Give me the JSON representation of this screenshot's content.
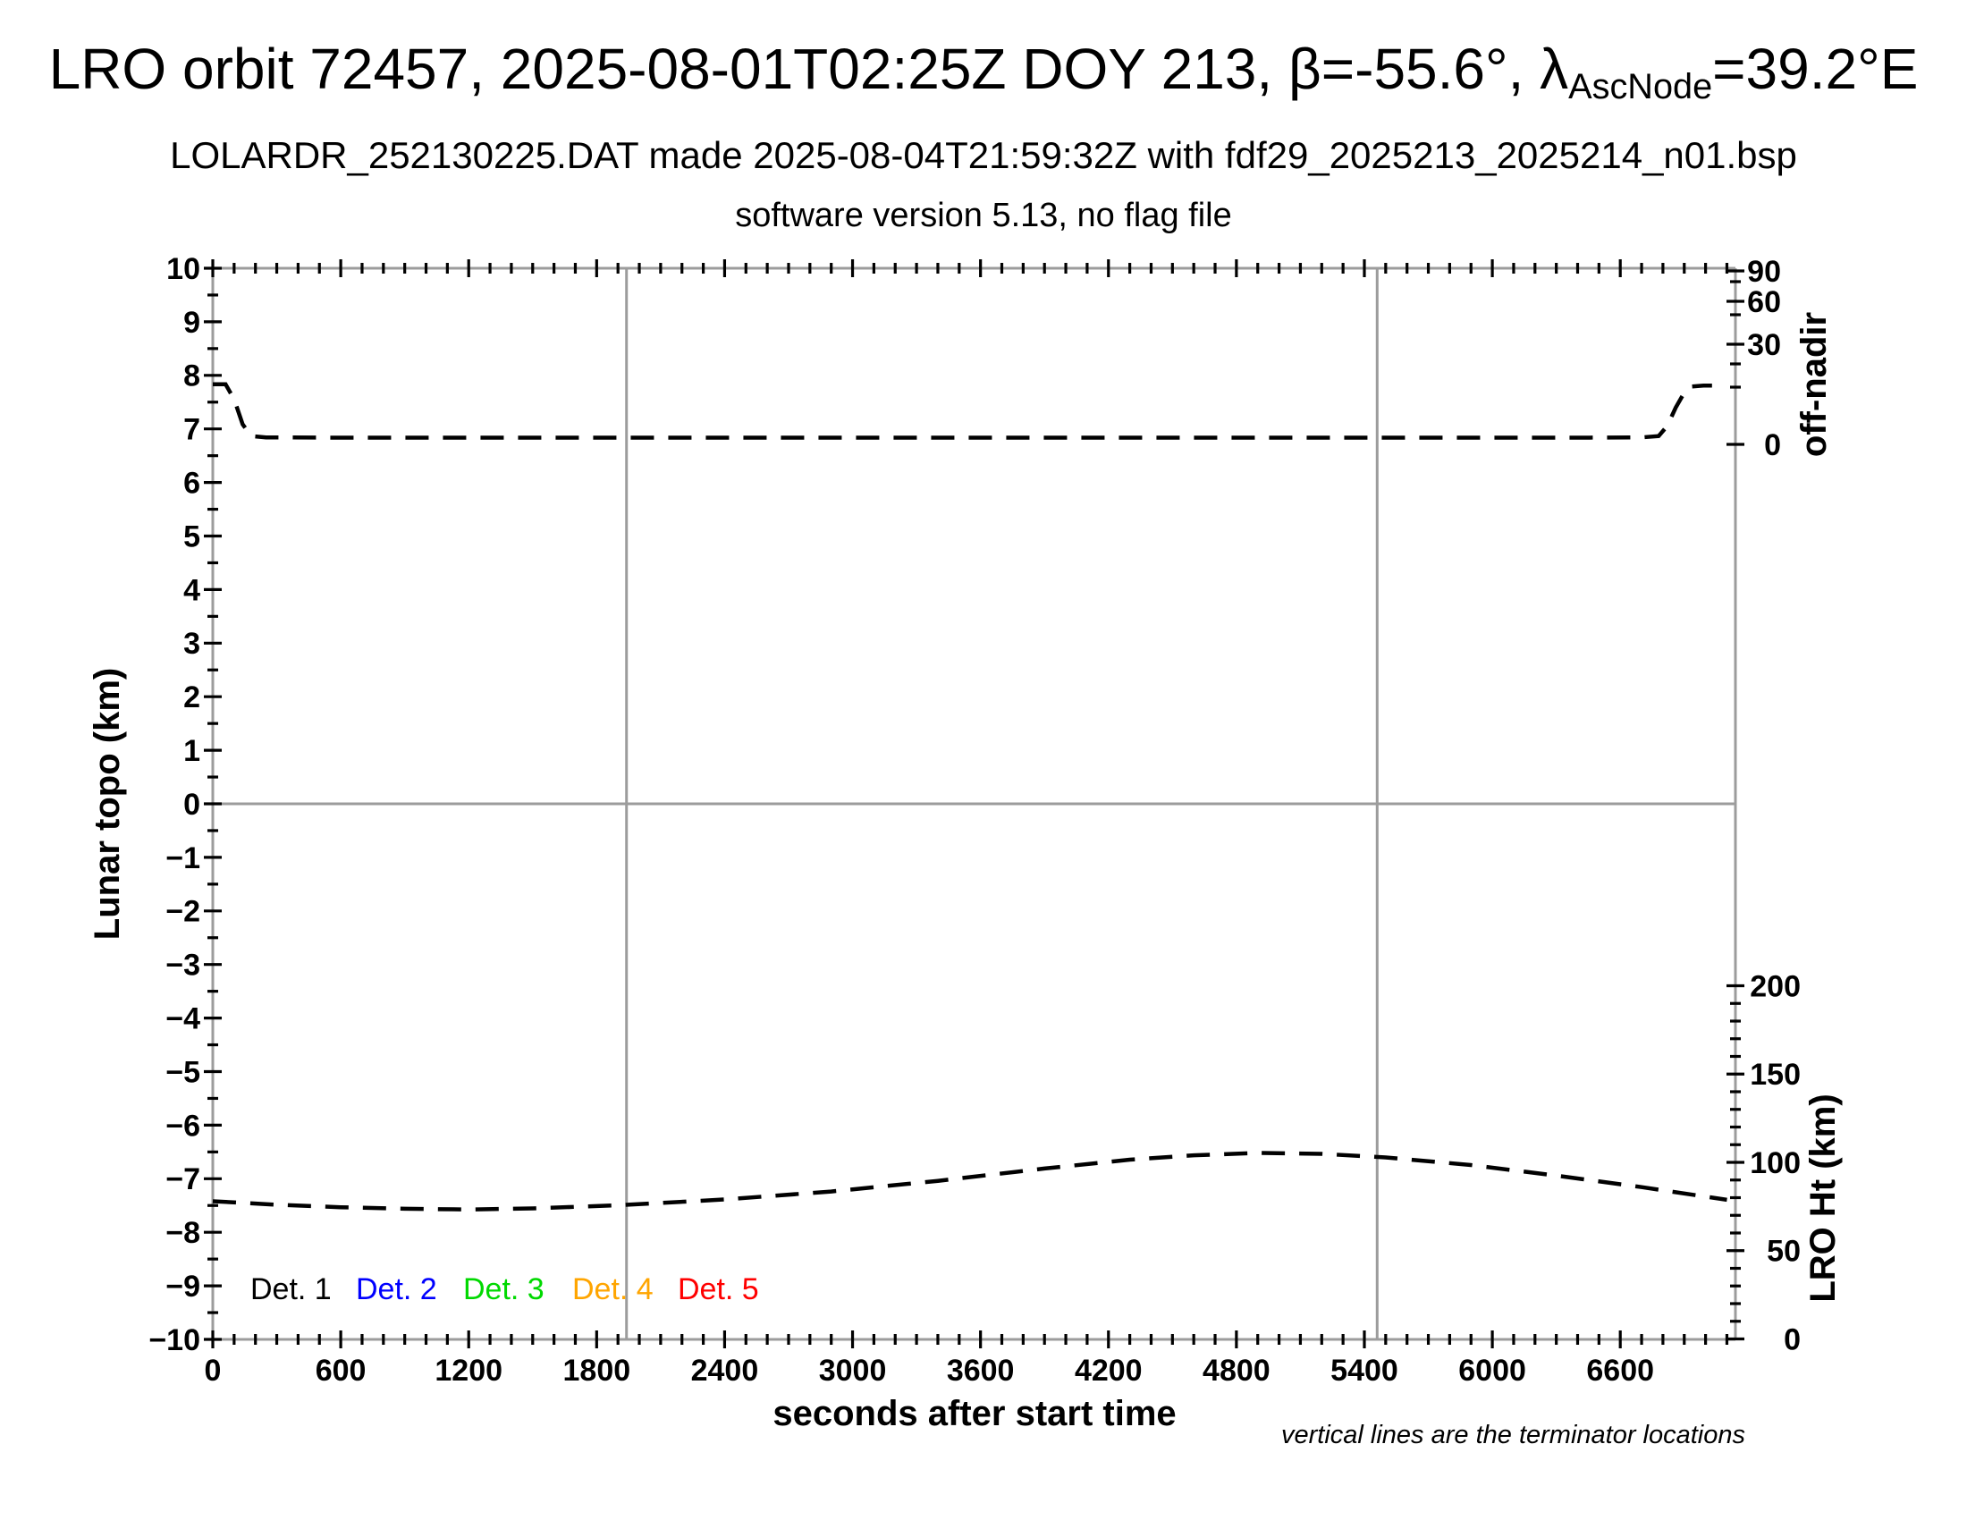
{
  "header": {
    "title_prefix": "LRO orbit 72457, 2025-08-01T02:25Z DOY 213, β=-55.6°, λ",
    "title_subscript": "AscNode",
    "title_suffix": "=39.2°E",
    "subtitle": "LOLARDR_252130225.DAT made 2025-08-04T21:59:32Z with fdf29_2025213_2025214_n01.bsp",
    "subtitle2": "software version 5.13, no flag file"
  },
  "chart_data": {
    "type": "line",
    "x_axis": {
      "label": "seconds after start time",
      "range": [
        0,
        7140
      ],
      "major_tick_step": 600,
      "minor_tick_step": 100,
      "tick_labels": [
        0,
        600,
        1200,
        1800,
        2400,
        3000,
        3600,
        4200,
        4800,
        5400,
        6000,
        6600
      ]
    },
    "y_axis_left": {
      "label": "Lunar topo (km)",
      "range": [
        -10,
        10
      ],
      "major_tick_step": 1,
      "minor_tick_step": 0.5,
      "tick_labels": [
        10,
        9,
        8,
        7,
        6,
        5,
        4,
        3,
        2,
        1,
        0,
        -1,
        -2,
        -3,
        -4,
        -5,
        -6,
        -7,
        -8,
        -9,
        -10
      ]
    },
    "y_axis_right_top": {
      "label": "off-nadir",
      "tick_labels": [
        90,
        60,
        30,
        0
      ]
    },
    "y_axis_right_bottom": {
      "label": "LRO Ht (km)",
      "range": [
        0,
        200
      ],
      "major_tick_step": 50,
      "minor_tick_step": 10,
      "tick_labels": [
        200,
        150,
        100,
        50,
        0
      ]
    },
    "zero_line": true,
    "terminator_times_s": [
      1940,
      5460
    ],
    "footnote": "vertical lines are the terminator locations",
    "series": [
      {
        "name": "spacecraft off-nadir angle",
        "axis": "off-nadir",
        "units": "deg",
        "color": "#000000",
        "line_style": "dashed",
        "points": [
          [
            0,
            18
          ],
          [
            60,
            18
          ],
          [
            100,
            13.5
          ],
          [
            140,
            6
          ],
          [
            180,
            2.5
          ],
          [
            250,
            2.1
          ],
          [
            600,
            2
          ],
          [
            1200,
            2
          ],
          [
            1800,
            2
          ],
          [
            2400,
            2
          ],
          [
            3000,
            2
          ],
          [
            3600,
            2
          ],
          [
            4200,
            2
          ],
          [
            4800,
            2
          ],
          [
            5400,
            2
          ],
          [
            6000,
            2
          ],
          [
            6400,
            2
          ],
          [
            6700,
            2.1
          ],
          [
            6780,
            2.5
          ],
          [
            6820,
            5.5
          ],
          [
            6860,
            11
          ],
          [
            6900,
            15.5
          ],
          [
            6930,
            17.3
          ],
          [
            6990,
            17.6
          ],
          [
            7030,
            17.6
          ]
        ]
      },
      {
        "name": "LRO height above surface",
        "axis": "lro-ht",
        "units": "km",
        "color": "#000000",
        "line_style": "dashed",
        "points": [
          [
            0,
            78
          ],
          [
            300,
            76
          ],
          [
            600,
            74.6
          ],
          [
            900,
            73.7
          ],
          [
            1200,
            73.3
          ],
          [
            1500,
            73.9
          ],
          [
            1900,
            75.7
          ],
          [
            2400,
            79
          ],
          [
            2900,
            83.5
          ],
          [
            3400,
            89.5
          ],
          [
            3900,
            96.5
          ],
          [
            4300,
            101.5
          ],
          [
            4600,
            104
          ],
          [
            4900,
            105.3
          ],
          [
            5200,
            104.8
          ],
          [
            5500,
            102.8
          ],
          [
            5900,
            98.5
          ],
          [
            6300,
            92.5
          ],
          [
            6700,
            86
          ],
          [
            7100,
            78.8
          ]
        ]
      }
    ],
    "legend": [
      {
        "label": "Det. 1",
        "color": "#000000"
      },
      {
        "label": "Det. 2",
        "color": "#0000ff"
      },
      {
        "label": "Det. 3",
        "color": "#00d900"
      },
      {
        "label": "Det. 4",
        "color": "#ffa500"
      },
      {
        "label": "Det. 5",
        "color": "#ff0000"
      }
    ]
  }
}
